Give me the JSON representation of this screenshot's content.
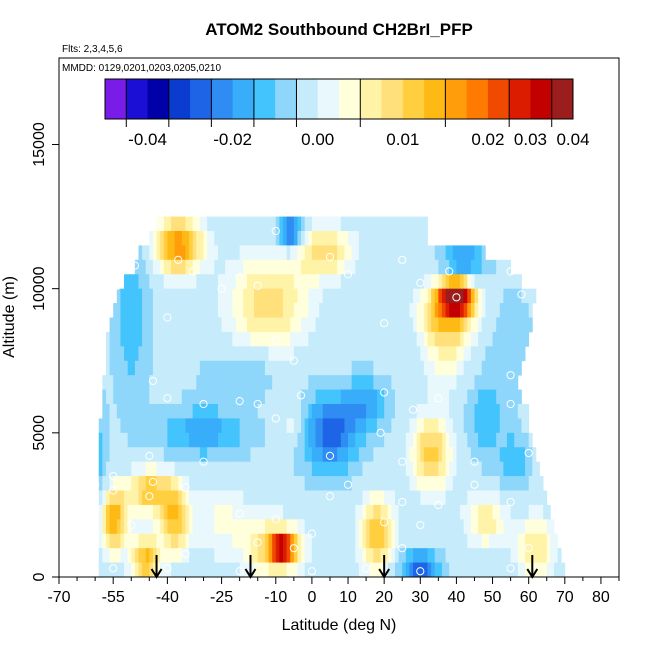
{
  "chart_data": {
    "type": "heatmap",
    "title": "ATOM2 Southbound CH2BrI_PFP",
    "flights_note": "Flts: 2,3,4,5,6",
    "dates_note": "MMDD: 0129,0201,0203,0205,0210",
    "xlabel": "Latitude (deg N)",
    "ylabel": "Altitude (m)",
    "xlim": [
      -70,
      85
    ],
    "ylim": [
      0,
      18000
    ],
    "x_ticks": [
      -70,
      -55,
      -40,
      -25,
      -10,
      0,
      10,
      20,
      30,
      40,
      50,
      60,
      70,
      80
    ],
    "x_tick_labels": [
      "-70",
      "-55",
      "-40",
      "-25",
      "-10",
      "0",
      "10",
      "20",
      "30",
      "40",
      "50",
      "60",
      "70",
      "80"
    ],
    "x_minor_step": 5,
    "y_ticks": [
      0,
      5000,
      10000,
      15000
    ],
    "y_tick_labels": [
      "0",
      "5000",
      "10000",
      "15000"
    ],
    "colorbar": {
      "ticks": [
        -0.04,
        -0.02,
        0.0,
        0.01,
        0.02,
        0.03,
        0.04
      ],
      "tick_labels": [
        "-0.04",
        "-0.02",
        "0.00",
        "0.01",
        "0.02",
        "0.03",
        "0.04"
      ],
      "colors": [
        "#7a1ce8",
        "#1b0fd6",
        "#0000a8",
        "#0a3ccf",
        "#1e64e6",
        "#2e8cf2",
        "#38adfa",
        "#44c4fd",
        "#8fd6fb",
        "#c6ecfc",
        "#e8f8fd",
        "#ffffdc",
        "#fff3a8",
        "#ffe07a",
        "#ffcf3f",
        "#ffb915",
        "#ff9d0a",
        "#ff7a00",
        "#f04a00",
        "#dc1c00",
        "#c20000",
        "#9c1d1d"
      ],
      "level_values": [
        -0.05,
        -0.045,
        -0.04,
        -0.035,
        -0.03,
        -0.025,
        -0.02,
        -0.015,
        -0.01,
        -0.005,
        0.0,
        0.0025,
        0.005,
        0.0075,
        0.01,
        0.0125,
        0.015,
        0.0175,
        0.02,
        0.025,
        0.03,
        0.035,
        0.04
      ],
      "separators": [
        -0.045,
        -0.035,
        -0.025,
        -0.015,
        -0.005,
        0.005,
        0.015,
        0.025,
        0.035
      ]
    },
    "rows": [
      {
        "alt": 12250,
        "lat_min": -43,
        "lat_max": 32
      },
      {
        "alt": 11750,
        "lat_min": -45,
        "lat_max": 32
      },
      {
        "alt": 11250,
        "lat_min": -48,
        "lat_max": 48
      },
      {
        "alt": 10750,
        "lat_min": -49,
        "lat_max": 55
      },
      {
        "alt": 10250,
        "lat_min": -52,
        "lat_max": 58
      },
      {
        "alt": 9750,
        "lat_min": -54,
        "lat_max": 62
      },
      {
        "alt": 9250,
        "lat_min": -55,
        "lat_max": 61
      },
      {
        "alt": 8750,
        "lat_min": -56,
        "lat_max": 61
      },
      {
        "alt": 8250,
        "lat_min": -57,
        "lat_max": 60
      },
      {
        "alt": 7750,
        "lat_min": -57,
        "lat_max": 59
      },
      {
        "alt": 7250,
        "lat_min": -57,
        "lat_max": 58
      },
      {
        "alt": 6750,
        "lat_min": -58,
        "lat_max": 57
      },
      {
        "alt": 6250,
        "lat_min": -58,
        "lat_max": 58
      },
      {
        "alt": 5750,
        "lat_min": -58,
        "lat_max": 60
      },
      {
        "alt": 5250,
        "lat_min": -59,
        "lat_max": 60
      },
      {
        "alt": 4750,
        "lat_min": -59,
        "lat_max": 61
      },
      {
        "alt": 4250,
        "lat_min": -59,
        "lat_max": 62
      },
      {
        "alt": 3750,
        "lat_min": -59,
        "lat_max": 63
      },
      {
        "alt": 3250,
        "lat_min": -59,
        "lat_max": 64
      },
      {
        "alt": 2750,
        "lat_min": -59,
        "lat_max": 65
      },
      {
        "alt": 2250,
        "lat_min": -59,
        "lat_max": 66
      },
      {
        "alt": 1750,
        "lat_min": -59,
        "lat_max": 67
      },
      {
        "alt": 1250,
        "lat_min": -59,
        "lat_max": 68
      },
      {
        "alt": 750,
        "lat_min": -59,
        "lat_max": 69
      },
      {
        "alt": 250,
        "lat_min": -59,
        "lat_max": 70
      }
    ],
    "row_height": 500,
    "anomalies": [
      {
        "lat": -37,
        "alt": 11500,
        "amp": 0.02,
        "wlat": 7,
        "walt": 1000
      },
      {
        "lat": 4,
        "alt": 11300,
        "amp": 0.012,
        "wlat": 8,
        "walt": 900
      },
      {
        "lat": -6,
        "alt": 12000,
        "amp": -0.03,
        "wlat": 3,
        "walt": 500
      },
      {
        "lat": 42,
        "alt": 11000,
        "amp": -0.02,
        "wlat": 6,
        "walt": 500
      },
      {
        "lat": 40,
        "alt": 9700,
        "amp": 0.04,
        "wlat": 4,
        "walt": 500
      },
      {
        "lat": 38,
        "alt": 9300,
        "amp": 0.015,
        "wlat": 8,
        "walt": 1000
      },
      {
        "lat": -12,
        "alt": 9500,
        "amp": 0.012,
        "wlat": 12,
        "walt": 1800
      },
      {
        "lat": 37,
        "alt": 8000,
        "amp": 0.008,
        "wlat": 7,
        "walt": 1500
      },
      {
        "lat": -50,
        "alt": 9000,
        "amp": -0.01,
        "wlat": 5,
        "walt": 3000
      },
      {
        "lat": -20,
        "alt": 7000,
        "amp": -0.008,
        "wlat": 10,
        "walt": 800
      },
      {
        "lat": 5,
        "alt": 5000,
        "amp": -0.025,
        "wlat": 8,
        "walt": 1300
      },
      {
        "lat": 15,
        "alt": 6000,
        "amp": -0.015,
        "wlat": 6,
        "walt": 900
      },
      {
        "lat": -30,
        "alt": 5000,
        "amp": -0.015,
        "wlat": 12,
        "walt": 900
      },
      {
        "lat": -5,
        "alt": 5300,
        "amp": 0.008,
        "wlat": 4,
        "walt": 800
      },
      {
        "lat": 33,
        "alt": 4300,
        "amp": 0.014,
        "wlat": 6,
        "walt": 1400
      },
      {
        "lat": 48,
        "alt": 5500,
        "amp": -0.01,
        "wlat": 5,
        "walt": 1500
      },
      {
        "lat": 56,
        "alt": 4000,
        "amp": -0.012,
        "wlat": 4,
        "walt": 900
      },
      {
        "lat": -45,
        "alt": 3000,
        "amp": 0.015,
        "wlat": 6,
        "walt": 800
      },
      {
        "lat": -55,
        "alt": 2000,
        "amp": 0.018,
        "wlat": 4,
        "walt": 1200
      },
      {
        "lat": -38,
        "alt": 2000,
        "amp": 0.015,
        "wlat": 4,
        "walt": 1300
      },
      {
        "lat": -46,
        "alt": 600,
        "amp": 0.016,
        "wlat": 4,
        "walt": 900
      },
      {
        "lat": -10,
        "alt": 1000,
        "amp": 0.015,
        "wlat": 8,
        "walt": 1000
      },
      {
        "lat": -8,
        "alt": 1000,
        "amp": 0.03,
        "wlat": 3,
        "walt": 400
      },
      {
        "lat": 18,
        "alt": 1500,
        "amp": 0.015,
        "wlat": 5,
        "walt": 1400
      },
      {
        "lat": 30,
        "alt": 300,
        "amp": -0.025,
        "wlat": 5,
        "walt": 600
      },
      {
        "lat": 48,
        "alt": 2000,
        "amp": 0.01,
        "wlat": 6,
        "walt": 1000
      },
      {
        "lat": -25,
        "alt": 2000,
        "amp": 0.006,
        "wlat": 8,
        "walt": 1500
      },
      {
        "lat": 62,
        "alt": 1000,
        "amp": 0.01,
        "wlat": 6,
        "walt": 1200
      },
      {
        "lat": -60,
        "alt": 4000,
        "amp": -0.012,
        "wlat": 3,
        "walt": 2000
      },
      {
        "lat": 55,
        "alt": 8000,
        "amp": -0.006,
        "wlat": 6,
        "walt": 2000
      }
    ],
    "sample_points": [
      [
        -42,
        12300
      ],
      [
        -10,
        12000
      ],
      [
        -50,
        11500
      ],
      [
        -37,
        11000
      ],
      [
        5,
        11100
      ],
      [
        25,
        11000
      ],
      [
        -49,
        10800
      ],
      [
        -33,
        10600
      ],
      [
        -20,
        10400
      ],
      [
        10,
        10500
      ],
      [
        38,
        10600
      ],
      [
        55,
        10600
      ],
      [
        -54,
        10100
      ],
      [
        -25,
        10000
      ],
      [
        -15,
        10100
      ],
      [
        30,
        10200
      ],
      [
        40,
        9700
      ],
      [
        58,
        9800
      ],
      [
        -40,
        9000
      ],
      [
        -10,
        8200
      ],
      [
        20,
        8800
      ],
      [
        -5,
        7500
      ],
      [
        55,
        7000
      ],
      [
        -44,
        6800
      ],
      [
        -40,
        6200
      ],
      [
        -30,
        6000
      ],
      [
        -20,
        6100
      ],
      [
        -15,
        6000
      ],
      [
        -3,
        6300
      ],
      [
        20,
        6400
      ],
      [
        35,
        6200
      ],
      [
        55,
        6000
      ],
      [
        -60,
        5800
      ],
      [
        -10,
        5500
      ],
      [
        28,
        5800
      ],
      [
        19,
        5000
      ],
      [
        -45,
        4200
      ],
      [
        -30,
        4000
      ],
      [
        5,
        4200
      ],
      [
        25,
        4000
      ],
      [
        45,
        4000
      ],
      [
        60,
        4300
      ],
      [
        -55,
        3500
      ],
      [
        -44,
        3300
      ],
      [
        -35,
        3100
      ],
      [
        -60,
        3200
      ],
      [
        10,
        3200
      ],
      [
        45,
        3200
      ],
      [
        -55,
        3000
      ],
      [
        -45,
        2800
      ],
      [
        5,
        2800
      ],
      [
        25,
        2600
      ],
      [
        55,
        2600
      ],
      [
        35,
        2500
      ],
      [
        -20,
        2200
      ],
      [
        -10,
        2000
      ],
      [
        0,
        1500
      ],
      [
        20,
        1900
      ],
      [
        30,
        1800
      ],
      [
        -50,
        1800
      ],
      [
        -15,
        1200
      ],
      [
        -5,
        1000
      ],
      [
        25,
        1000
      ],
      [
        60,
        1000
      ],
      [
        -35,
        800
      ],
      [
        -55,
        300
      ],
      [
        -40,
        300
      ],
      [
        -20,
        200
      ],
      [
        0,
        200
      ],
      [
        15,
        300
      ],
      [
        30,
        200
      ],
      [
        55,
        300
      ]
    ],
    "arrows": [
      -43,
      -17,
      20,
      61
    ]
  }
}
